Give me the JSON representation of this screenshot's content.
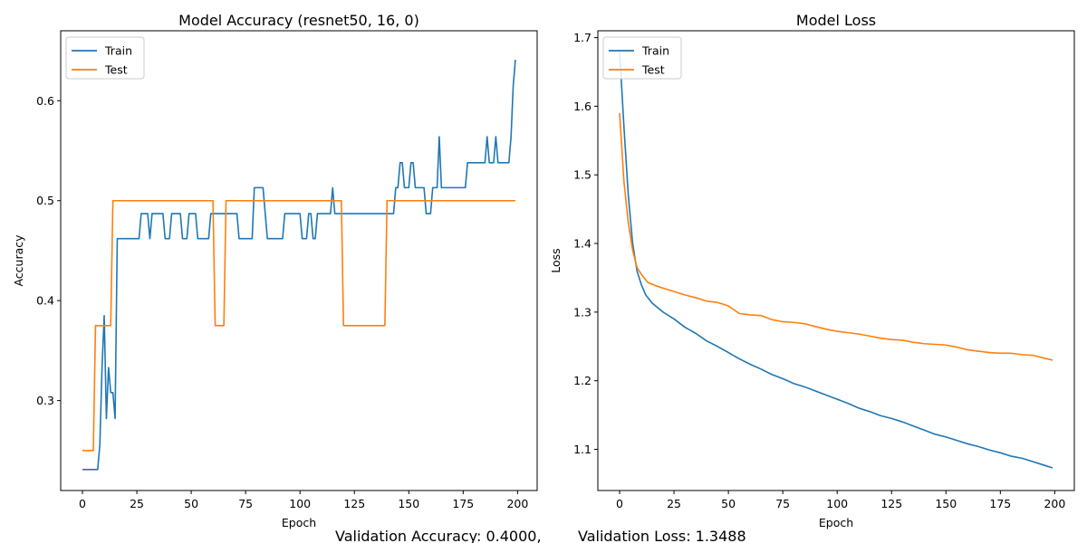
{
  "chart_data": [
    {
      "type": "line",
      "title": "Model Accuracy (resnet50, 16, 0)",
      "xlabel": "Epoch",
      "ylabel": "Accuracy",
      "xlim": [
        -10,
        209
      ],
      "ylim": [
        0.21,
        0.67
      ],
      "xticks": [
        0,
        25,
        50,
        75,
        100,
        125,
        150,
        175,
        200
      ],
      "yticks": [
        0.3,
        0.4,
        0.5,
        0.6
      ],
      "ytick_labels": [
        "0.3",
        "0.4",
        "0.5",
        "0.6"
      ],
      "grid": false,
      "legend": "upper-left",
      "series": [
        {
          "name": "Train",
          "color": "#1f77b4",
          "points": [
            [
              0,
              0.231
            ],
            [
              7,
              0.231
            ],
            [
              8,
              0.256
            ],
            [
              9,
              0.333
            ],
            [
              10,
              0.385
            ],
            [
              11,
              0.282
            ],
            [
              12,
              0.333
            ],
            [
              13,
              0.308
            ],
            [
              14,
              0.308
            ],
            [
              15,
              0.282
            ],
            [
              16,
              0.462
            ],
            [
              26,
              0.462
            ],
            [
              27,
              0.487
            ],
            [
              30,
              0.487
            ],
            [
              31,
              0.462
            ],
            [
              32,
              0.487
            ],
            [
              37,
              0.487
            ],
            [
              38,
              0.462
            ],
            [
              40,
              0.462
            ],
            [
              41,
              0.487
            ],
            [
              45,
              0.487
            ],
            [
              46,
              0.462
            ],
            [
              48,
              0.462
            ],
            [
              49,
              0.487
            ],
            [
              52,
              0.487
            ],
            [
              53,
              0.462
            ],
            [
              58,
              0.462
            ],
            [
              59,
              0.487
            ],
            [
              71,
              0.487
            ],
            [
              72,
              0.462
            ],
            [
              78,
              0.462
            ],
            [
              79,
              0.513
            ],
            [
              83,
              0.513
            ],
            [
              85,
              0.462
            ],
            [
              92,
              0.462
            ],
            [
              93,
              0.487
            ],
            [
              100,
              0.487
            ],
            [
              101,
              0.462
            ],
            [
              103,
              0.462
            ],
            [
              104,
              0.487
            ],
            [
              105,
              0.487
            ],
            [
              106,
              0.462
            ],
            [
              107,
              0.462
            ],
            [
              108,
              0.487
            ],
            [
              114,
              0.487
            ],
            [
              115,
              0.513
            ],
            [
              116,
              0.487
            ],
            [
              143,
              0.487
            ],
            [
              144,
              0.513
            ],
            [
              145,
              0.513
            ],
            [
              146,
              0.538
            ],
            [
              147,
              0.538
            ],
            [
              148,
              0.513
            ],
            [
              150,
              0.513
            ],
            [
              151,
              0.538
            ],
            [
              152,
              0.538
            ],
            [
              153,
              0.513
            ],
            [
              157,
              0.513
            ],
            [
              158,
              0.487
            ],
            [
              160,
              0.487
            ],
            [
              161,
              0.513
            ],
            [
              163,
              0.513
            ],
            [
              164,
              0.564
            ],
            [
              165,
              0.513
            ],
            [
              176,
              0.513
            ],
            [
              177,
              0.538
            ],
            [
              185,
              0.538
            ],
            [
              186,
              0.564
            ],
            [
              187,
              0.538
            ],
            [
              189,
              0.538
            ],
            [
              190,
              0.564
            ],
            [
              191,
              0.538
            ],
            [
              196,
              0.538
            ],
            [
              197,
              0.564
            ],
            [
              198,
              0.615
            ],
            [
              199,
              0.641
            ]
          ]
        },
        {
          "name": "Test",
          "color": "#ff7f0e",
          "points": [
            [
              0,
              0.25
            ],
            [
              5,
              0.25
            ],
            [
              6,
              0.375
            ],
            [
              13,
              0.375
            ],
            [
              14,
              0.5
            ],
            [
              60,
              0.5
            ],
            [
              61,
              0.375
            ],
            [
              65,
              0.375
            ],
            [
              66,
              0.5
            ],
            [
              119,
              0.5
            ],
            [
              120,
              0.375
            ],
            [
              139,
              0.375
            ],
            [
              140,
              0.5
            ],
            [
              199,
              0.5
            ]
          ]
        }
      ]
    },
    {
      "type": "line",
      "title": "Model Loss",
      "xlabel": "Epoch",
      "ylabel": "Loss",
      "xlim": [
        -10,
        209
      ],
      "ylim": [
        1.04,
        1.71
      ],
      "xticks": [
        0,
        25,
        50,
        75,
        100,
        125,
        150,
        175,
        200
      ],
      "yticks": [
        1.1,
        1.2,
        1.3,
        1.4,
        1.5,
        1.6,
        1.7
      ],
      "ytick_labels": [
        "1.1",
        "1.2",
        "1.3",
        "1.4",
        "1.5",
        "1.6",
        "1.7"
      ],
      "grid": false,
      "legend": "upper-left",
      "series": [
        {
          "name": "Train",
          "color": "#1f77b4",
          "points": [
            [
              0,
              1.68
            ],
            [
              2,
              1.57
            ],
            [
              4,
              1.47
            ],
            [
              6,
              1.4
            ],
            [
              8,
              1.36
            ],
            [
              10,
              1.34
            ],
            [
              12,
              1.325
            ],
            [
              15,
              1.313
            ],
            [
              20,
              1.3
            ],
            [
              25,
              1.29
            ],
            [
              30,
              1.278
            ],
            [
              35,
              1.269
            ],
            [
              40,
              1.258
            ],
            [
              45,
              1.25
            ],
            [
              50,
              1.241
            ],
            [
              55,
              1.232
            ],
            [
              60,
              1.224
            ],
            [
              65,
              1.217
            ],
            [
              70,
              1.209
            ],
            [
              75,
              1.203
            ],
            [
              80,
              1.196
            ],
            [
              85,
              1.191
            ],
            [
              90,
              1.185
            ],
            [
              95,
              1.179
            ],
            [
              100,
              1.173
            ],
            [
              105,
              1.167
            ],
            [
              110,
              1.16
            ],
            [
              115,
              1.155
            ],
            [
              120,
              1.149
            ],
            [
              125,
              1.145
            ],
            [
              130,
              1.14
            ],
            [
              135,
              1.134
            ],
            [
              140,
              1.128
            ],
            [
              145,
              1.122
            ],
            [
              150,
              1.118
            ],
            [
              155,
              1.113
            ],
            [
              160,
              1.108
            ],
            [
              165,
              1.104
            ],
            [
              170,
              1.099
            ],
            [
              175,
              1.095
            ],
            [
              180,
              1.09
            ],
            [
              185,
              1.087
            ],
            [
              190,
              1.082
            ],
            [
              195,
              1.077
            ],
            [
              199,
              1.073
            ]
          ]
        },
        {
          "name": "Test",
          "color": "#ff7f0e",
          "points": [
            [
              0,
              1.59
            ],
            [
              2,
              1.49
            ],
            [
              4,
              1.43
            ],
            [
              6,
              1.39
            ],
            [
              8,
              1.365
            ],
            [
              10,
              1.355
            ],
            [
              13,
              1.343
            ],
            [
              17,
              1.338
            ],
            [
              20,
              1.335
            ],
            [
              25,
              1.33
            ],
            [
              30,
              1.325
            ],
            [
              35,
              1.321
            ],
            [
              40,
              1.316
            ],
            [
              45,
              1.314
            ],
            [
              50,
              1.309
            ],
            [
              55,
              1.298
            ],
            [
              60,
              1.296
            ],
            [
              65,
              1.295
            ],
            [
              70,
              1.289
            ],
            [
              75,
              1.286
            ],
            [
              80,
              1.285
            ],
            [
              85,
              1.283
            ],
            [
              90,
              1.279
            ],
            [
              95,
              1.275
            ],
            [
              100,
              1.272
            ],
            [
              105,
              1.27
            ],
            [
              110,
              1.268
            ],
            [
              115,
              1.265
            ],
            [
              120,
              1.262
            ],
            [
              125,
              1.26
            ],
            [
              130,
              1.259
            ],
            [
              135,
              1.256
            ],
            [
              140,
              1.254
            ],
            [
              145,
              1.253
            ],
            [
              150,
              1.252
            ],
            [
              155,
              1.249
            ],
            [
              160,
              1.245
            ],
            [
              165,
              1.243
            ],
            [
              170,
              1.241
            ],
            [
              175,
              1.24
            ],
            [
              180,
              1.24
            ],
            [
              185,
              1.238
            ],
            [
              190,
              1.237
            ],
            [
              195,
              1.233
            ],
            [
              199,
              1.23
            ]
          ]
        }
      ]
    }
  ],
  "footer": {
    "accuracy_text": "Validation Accuracy: 0.4000,",
    "loss_text": "Validation Loss: 1.3488"
  }
}
